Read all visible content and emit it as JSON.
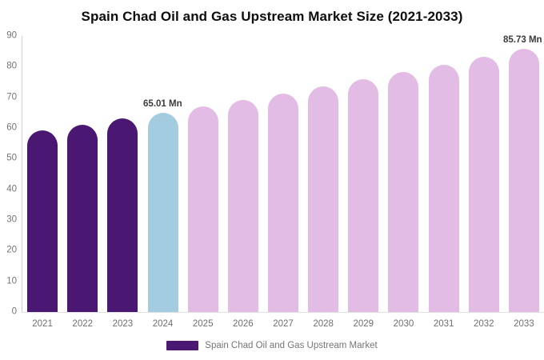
{
  "title": "Spain Chad Oil and Gas Upstream Market Size (2021-2033)",
  "legend": {
    "label": "Spain Chad Oil and Gas Upstream Market",
    "swatch_color": "#4a1772"
  },
  "colors": {
    "historical": "#4a1772",
    "base_year": "#a4cce1",
    "forecast": "#e3bce5",
    "axis_line_vertical": "#cfcfcf",
    "axis_line_horizontal": "#e2e2e2",
    "tick_text": "#757575",
    "annotation_text": "#3b3b3b",
    "title_text": "#0d0d0d"
  },
  "chart_data": {
    "type": "bar",
    "title": "Spain Chad Oil and Gas Upstream Market Size (2021-2033)",
    "xlabel": "",
    "ylabel": "",
    "unit": "Mn",
    "categories": [
      "2021",
      "2022",
      "2023",
      "2024",
      "2025",
      "2026",
      "2027",
      "2028",
      "2029",
      "2030",
      "2031",
      "2032",
      "2033"
    ],
    "values": [
      59.28,
      61.13,
      63.04,
      65.01,
      67.04,
      69.13,
      71.29,
      73.52,
      75.81,
      78.18,
      80.62,
      83.14,
      85.73
    ],
    "bar_roles": [
      "historical",
      "historical",
      "historical",
      "base_year",
      "forecast",
      "forecast",
      "forecast",
      "forecast",
      "forecast",
      "forecast",
      "forecast",
      "forecast",
      "forecast"
    ],
    "ylim": [
      0,
      90
    ],
    "yticks": [
      0,
      10,
      20,
      30,
      40,
      50,
      60,
      70,
      80,
      90
    ],
    "grid": false,
    "legend_position": "bottom",
    "annotations": [
      {
        "category": "2024",
        "text": "65.01 Mn"
      },
      {
        "category": "2033",
        "text": "85.73 Mn"
      }
    ]
  }
}
